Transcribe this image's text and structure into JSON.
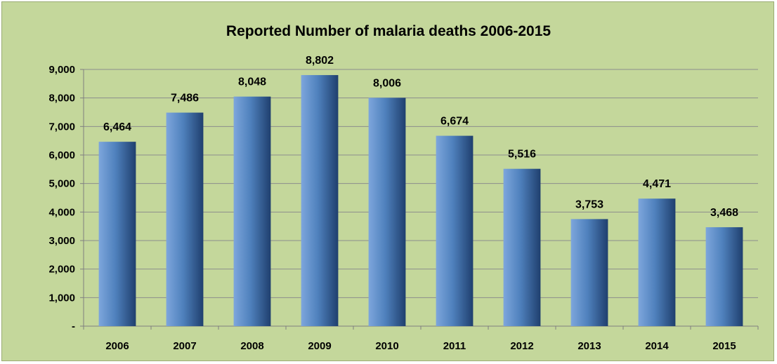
{
  "chart_data": {
    "type": "bar",
    "title": "Reported Number of malaria deaths 2006-2015",
    "xlabel": "",
    "ylabel": "",
    "categories": [
      "2006",
      "2007",
      "2008",
      "2009",
      "2010",
      "2011",
      "2012",
      "2013",
      "2014",
      "2015"
    ],
    "values": [
      6464,
      7486,
      8048,
      8802,
      8006,
      6674,
      5516,
      3753,
      4471,
      3468
    ],
    "value_labels": [
      "6,464",
      "7,486",
      "8,048",
      "8,802",
      "8,006",
      "6,674",
      "5,516",
      "3,753",
      "4,471",
      "3,468"
    ],
    "ylim": [
      0,
      9000
    ],
    "y_ticks": [
      0,
      1000,
      2000,
      3000,
      4000,
      5000,
      6000,
      7000,
      8000,
      9000
    ],
    "y_tick_labels": [
      "-",
      "1,000",
      "2,000",
      "3,000",
      "4,000",
      "5,000",
      "6,000",
      "7,000",
      "8,000",
      "9,000"
    ],
    "grid": true,
    "legend": "none",
    "colors": {
      "background": "#c4d79b",
      "bar_light": "#7ea6dc",
      "bar_mid": "#4f81bd",
      "bar_dark": "#1f3f6e",
      "gridline": "#8c8c8c",
      "axis": "#7f7f7f"
    }
  }
}
